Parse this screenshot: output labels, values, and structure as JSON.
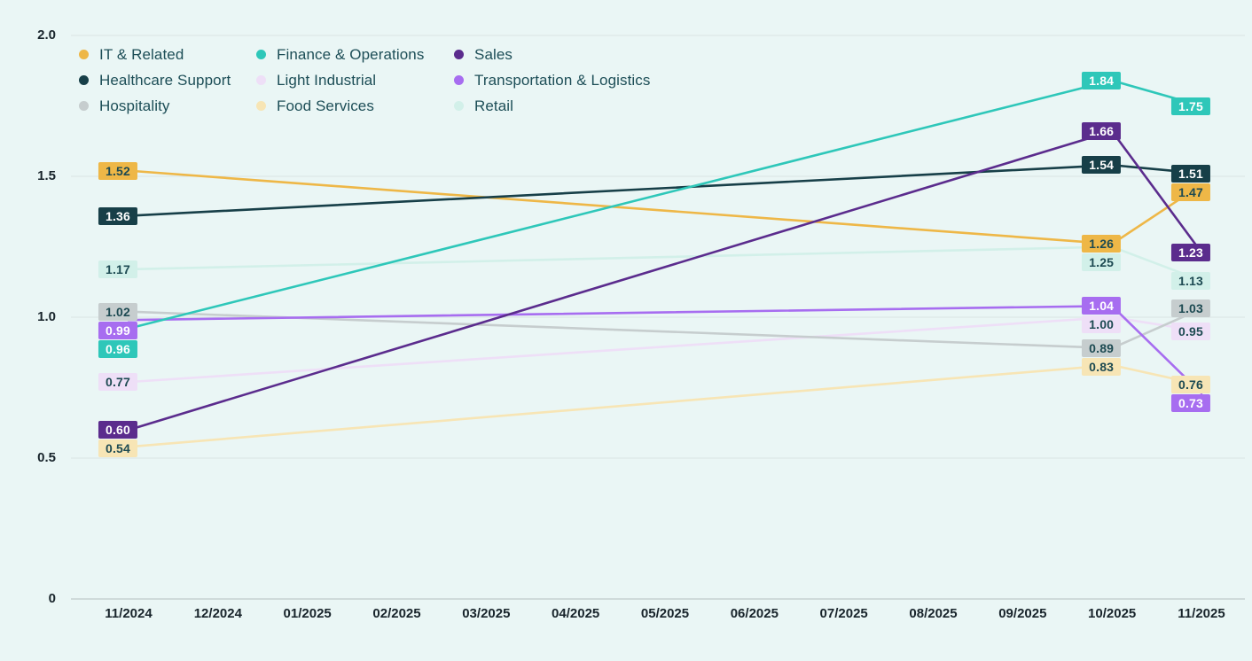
{
  "chart_data": {
    "type": "line",
    "title": "",
    "xlabel": "",
    "ylabel": "",
    "grid": true,
    "legend_position": "top-left",
    "ylim": [
      0,
      2.0
    ],
    "y_tick_labels": [
      "2.0",
      "1.5",
      "1.0",
      "0.5",
      "0"
    ],
    "x_tick_labels": [
      "11/2024",
      "12/2024",
      "01/2025",
      "02/2025",
      "03/2025",
      "04/2025",
      "05/2025",
      "06/2025",
      "07/2025",
      "08/2025",
      "09/2025",
      "10/2025",
      "11/2025"
    ],
    "point_months": [
      "11/2024",
      "10/2025",
      "11/2025"
    ],
    "series": [
      {
        "name": "IT & Related",
        "color": "#eeb747",
        "label_text": "dark",
        "values": [
          1.52,
          1.26,
          1.47
        ]
      },
      {
        "name": "Healthcare Support",
        "color": "#173f48",
        "label_text": "light",
        "values": [
          1.36,
          1.54,
          1.51
        ]
      },
      {
        "name": "Hospitality",
        "color": "#c6cdce",
        "label_text": "dark",
        "values": [
          1.02,
          0.89,
          1.03
        ]
      },
      {
        "name": "Finance & Operations",
        "color": "#2ec7b9",
        "label_text": "light",
        "values": [
          0.96,
          1.84,
          1.75
        ]
      },
      {
        "name": "Light Industrial",
        "color": "#eedff7",
        "label_text": "dark",
        "values": [
          0.77,
          1.0,
          0.95
        ]
      },
      {
        "name": "Food Services",
        "color": "#f7e5b5",
        "label_text": "dark",
        "values": [
          0.54,
          0.83,
          0.76
        ]
      },
      {
        "name": "Sales",
        "color": "#5b2c8d",
        "label_text": "light",
        "values": [
          0.6,
          1.66,
          1.23
        ]
      },
      {
        "name": "Transportation & Logistics",
        "color": "#a76df0",
        "label_text": "light",
        "values": [
          0.99,
          1.04,
          0.73
        ]
      },
      {
        "name": "Retail",
        "color": "#d2f0e9",
        "label_text": "dark",
        "values": [
          1.17,
          1.25,
          1.13
        ]
      }
    ]
  },
  "colors": {
    "background": "#eaf6f5",
    "gridline": "#dbe4e4",
    "axis_line": "#c6d0d1",
    "tick_text": "#18242b",
    "legend_text": "#1d4e57",
    "label_dark_text": "#1d4a52",
    "label_light_text": "#ffffff"
  }
}
